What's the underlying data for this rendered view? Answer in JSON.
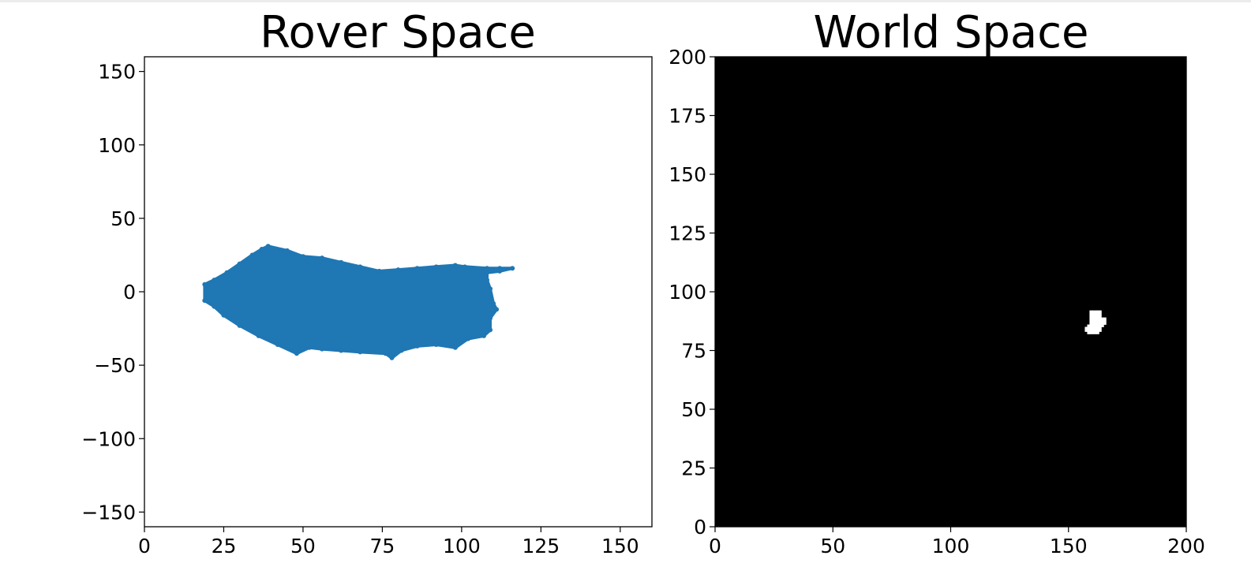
{
  "chart_data": [
    {
      "type": "scatter",
      "title": "Rover Space",
      "xlabel": "",
      "ylabel": "",
      "xlim": [
        0,
        160
      ],
      "ylim": [
        -160,
        160
      ],
      "xticks": [
        "0",
        "25",
        "50",
        "75",
        "100",
        "125",
        "150"
      ],
      "yticks": [
        "150",
        "100",
        "50",
        "0",
        "−50",
        "−100",
        "−150"
      ],
      "xtick_values": [
        0,
        25,
        50,
        75,
        100,
        125,
        150
      ],
      "ytick_values": [
        150,
        100,
        50,
        0,
        -50,
        -100,
        -150
      ],
      "grid": false,
      "series": [
        {
          "color": "#1f77b4",
          "region_outline": [
            [
              19,
              5
            ],
            [
              22,
              8
            ],
            [
              26,
              13
            ],
            [
              30,
              19
            ],
            [
              34,
              25
            ],
            [
              37,
              29
            ],
            [
              39,
              31
            ],
            [
              45,
              28
            ],
            [
              50,
              24
            ],
            [
              56,
              23
            ],
            [
              62,
              20
            ],
            [
              68,
              17
            ],
            [
              74,
              14
            ],
            [
              80,
              15
            ],
            [
              86,
              16
            ],
            [
              92,
              17
            ],
            [
              98,
              18
            ],
            [
              101,
              17
            ],
            [
              108,
              16
            ],
            [
              112,
              16
            ],
            [
              116,
              16
            ],
            [
              112,
              14
            ],
            [
              108,
              13
            ],
            [
              108,
              8
            ],
            [
              109,
              2
            ],
            [
              110,
              -8
            ],
            [
              111,
              -12
            ],
            [
              109,
              -18
            ],
            [
              109,
              -26
            ],
            [
              107,
              -30
            ],
            [
              102,
              -32
            ],
            [
              98,
              -38
            ],
            [
              92,
              -36
            ],
            [
              86,
              -37
            ],
            [
              81,
              -40
            ],
            [
              78,
              -45
            ],
            [
              76,
              -42
            ],
            [
              68,
              -41
            ],
            [
              62,
              -40
            ],
            [
              56,
              -39
            ],
            [
              52,
              -38
            ],
            [
              48,
              -42
            ],
            [
              42,
              -36
            ],
            [
              36,
              -30
            ],
            [
              30,
              -23
            ],
            [
              25,
              -16
            ],
            [
              22,
              -10
            ],
            [
              19,
              -6
            ]
          ]
        }
      ]
    },
    {
      "type": "heatmap",
      "title": "World Space",
      "xlabel": "",
      "ylabel": "",
      "xlim": [
        0,
        200
      ],
      "ylim": [
        0,
        200
      ],
      "xticks": [
        "0",
        "50",
        "100",
        "150",
        "200"
      ],
      "yticks": [
        "200",
        "175",
        "150",
        "125",
        "100",
        "75",
        "50",
        "25",
        "0"
      ],
      "xtick_values": [
        0,
        50,
        100,
        150,
        200
      ],
      "ytick_values": [
        200,
        175,
        150,
        125,
        100,
        75,
        50,
        25,
        0
      ],
      "background_color": "#000000",
      "foreground_color": "#ffffff",
      "grid": false,
      "nonzero_cells": [
        [
          159,
          91
        ],
        [
          160,
          91
        ],
        [
          161,
          91
        ],
        [
          162,
          91
        ],
        [
          163,
          91
        ],
        [
          159,
          90
        ],
        [
          160,
          90
        ],
        [
          161,
          90
        ],
        [
          162,
          90
        ],
        [
          163,
          90
        ],
        [
          159,
          89
        ],
        [
          160,
          89
        ],
        [
          161,
          89
        ],
        [
          162,
          89
        ],
        [
          163,
          89
        ],
        [
          159,
          88
        ],
        [
          160,
          88
        ],
        [
          161,
          88
        ],
        [
          162,
          88
        ],
        [
          163,
          88
        ],
        [
          164,
          88
        ],
        [
          165,
          88
        ],
        [
          159,
          87
        ],
        [
          160,
          87
        ],
        [
          161,
          87
        ],
        [
          162,
          87
        ],
        [
          163,
          87
        ],
        [
          164,
          87
        ],
        [
          165,
          87
        ],
        [
          159,
          86
        ],
        [
          160,
          86
        ],
        [
          161,
          86
        ],
        [
          162,
          86
        ],
        [
          163,
          86
        ],
        [
          164,
          86
        ],
        [
          165,
          86
        ],
        [
          158,
          85
        ],
        [
          159,
          85
        ],
        [
          160,
          85
        ],
        [
          161,
          85
        ],
        [
          162,
          85
        ],
        [
          163,
          85
        ],
        [
          164,
          85
        ],
        [
          157,
          84
        ],
        [
          158,
          84
        ],
        [
          159,
          84
        ],
        [
          160,
          84
        ],
        [
          161,
          84
        ],
        [
          162,
          84
        ],
        [
          163,
          84
        ],
        [
          157,
          83
        ],
        [
          158,
          83
        ],
        [
          159,
          83
        ],
        [
          160,
          83
        ],
        [
          161,
          83
        ],
        [
          162,
          83
        ],
        [
          163,
          83
        ],
        [
          158,
          82
        ],
        [
          159,
          82
        ],
        [
          160,
          82
        ],
        [
          161,
          82
        ],
        [
          162,
          82
        ]
      ]
    }
  ]
}
